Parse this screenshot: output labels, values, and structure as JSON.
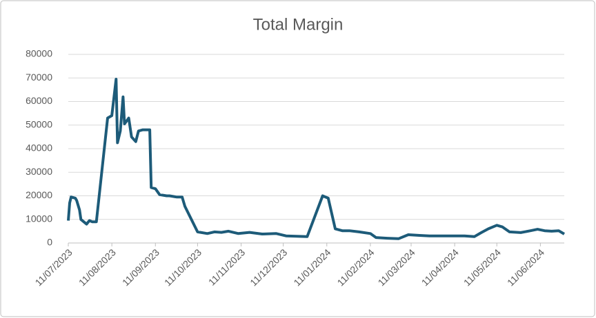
{
  "chart_data": {
    "type": "line",
    "title": "Total Margin",
    "color": "#1d5b79",
    "grid": true,
    "x": [
      "11/07/2023",
      "12/07/2023",
      "13/07/2023",
      "16/07/2023",
      "17/07/2023",
      "19/07/2023",
      "20/07/2023",
      "22/07/2023",
      "24/07/2023",
      "26/07/2023",
      "28/07/2023",
      "31/07/2023",
      "08/08/2023",
      "11/08/2023",
      "14/08/2023",
      "15/08/2023",
      "17/08/2023",
      "19/08/2023",
      "20/08/2023",
      "23/08/2023",
      "25/08/2023",
      "28/08/2023",
      "30/08/2023",
      "02/09/2023",
      "07/09/2023",
      "08/09/2023",
      "11/09/2023",
      "14/09/2023",
      "19/09/2023",
      "21/09/2023",
      "26/09/2023",
      "30/09/2023",
      "02/10/2023",
      "11/10/2023",
      "18/10/2023",
      "23/10/2023",
      "28/10/2023",
      "02/11/2023",
      "09/11/2023",
      "17/11/2023",
      "26/11/2023",
      "06/12/2023",
      "13/12/2023",
      "28/12/2023",
      "08/01/2024",
      "12/01/2024",
      "17/01/2024",
      "22/01/2024",
      "27/01/2024",
      "03/02/2024",
      "11/02/2024",
      "15/02/2024",
      "23/02/2024",
      "02/03/2024",
      "09/03/2024",
      "17/03/2024",
      "24/03/2024",
      "08/04/2024",
      "18/04/2024",
      "25/04/2024",
      "30/04/2024",
      "05/05/2024",
      "11/05/2024",
      "15/05/2024",
      "20/05/2024",
      "28/05/2024",
      "04/06/2024",
      "09/06/2024",
      "14/06/2024",
      "19/06/2024",
      "24/06/2024",
      "28/06/2024"
    ],
    "values": [
      9500,
      17000,
      19500,
      19000,
      18000,
      14000,
      10000,
      9000,
      8000,
      9500,
      9000,
      9000,
      53000,
      54000,
      69500,
      42500,
      47500,
      62000,
      50500,
      53000,
      45000,
      43000,
      47500,
      48000,
      48000,
      23500,
      23000,
      20500,
      20000,
      20000,
      19500,
      19500,
      15500,
      4700,
      4000,
      4700,
      4500,
      5000,
      4000,
      4500,
      3800,
      4000,
      3000,
      2700,
      20000,
      19000,
      6000,
      5200,
      5200,
      4700,
      4000,
      2300,
      2000,
      1800,
      3500,
      3200,
      3000,
      3000,
      3000,
      2700,
      4400,
      6000,
      7500,
      6800,
      4700,
      4400,
      5200,
      5800,
      5200,
      5000,
      5200,
      3800
    ],
    "xlim": [
      "11/07/2023",
      "28/06/2024"
    ],
    "xticks": [
      "11/07/2023",
      "11/08/2023",
      "11/09/2023",
      "11/10/2023",
      "11/11/2023",
      "11/12/2023",
      "11/01/2024",
      "11/02/2024",
      "11/03/2024",
      "11/04/2024",
      "11/05/2024",
      "11/06/2024"
    ],
    "ylim": [
      0,
      80000
    ],
    "yticks": [
      0,
      10000,
      20000,
      30000,
      40000,
      50000,
      60000,
      70000,
      80000
    ]
  }
}
